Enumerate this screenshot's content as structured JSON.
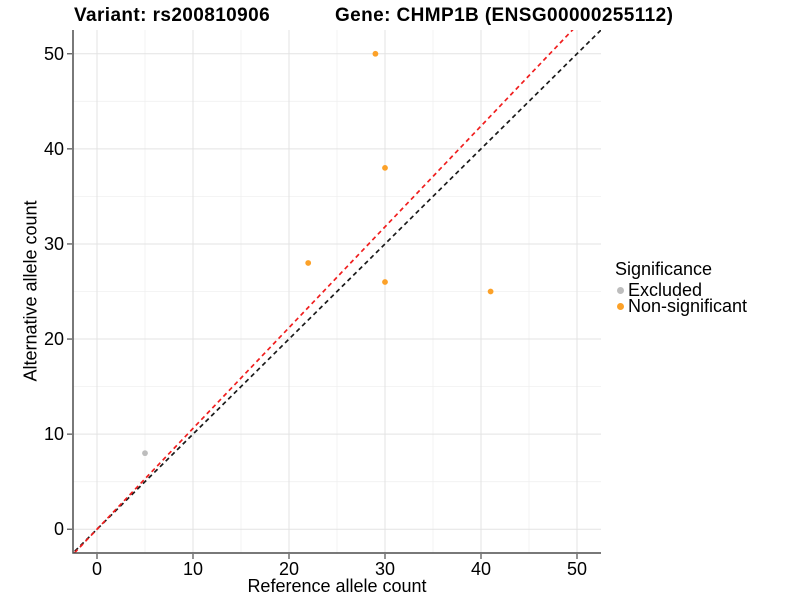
{
  "chart_data": {
    "type": "scatter",
    "title_left": "Variant: rs200810906",
    "title_right": "Gene: CHMP1B (ENSG00000255112)",
    "xlabel": "Reference allele count",
    "ylabel": "Alternative allele count",
    "xlim": [
      -2.5,
      52.5
    ],
    "ylim": [
      -2.5,
      52.5
    ],
    "x_ticks": [
      0,
      10,
      20,
      30,
      40,
      50
    ],
    "y_ticks": [
      0,
      10,
      20,
      30,
      40,
      50
    ],
    "x_minor_ticks": [
      5,
      15,
      25,
      35,
      45
    ],
    "y_minor_ticks": [
      5,
      15,
      25,
      35,
      45
    ],
    "grid": "major and minor gridlines, light grey on white",
    "series": [
      {
        "name": "Excluded",
        "color": "#BDBDBD",
        "points": [
          {
            "x": 5,
            "y": 8
          }
        ]
      },
      {
        "name": "Non-significant",
        "color": "#FCA128",
        "points": [
          {
            "x": 22,
            "y": 28
          },
          {
            "x": 29,
            "y": 50
          },
          {
            "x": 30,
            "y": 26
          },
          {
            "x": 30,
            "y": 38
          },
          {
            "x": 41,
            "y": 25
          }
        ]
      }
    ],
    "reference_lines": [
      {
        "name": "identity-line",
        "slope": 1.0,
        "intercept": 0,
        "color": "#1A1A1A",
        "style": "dashed"
      },
      {
        "name": "allelic-ratio-line",
        "slope": 1.06,
        "intercept": 0,
        "color": "#F01E1E",
        "style": "dashed"
      }
    ],
    "legend": {
      "title": "Significance",
      "position": "right",
      "items": [
        {
          "label": "Excluded",
          "color": "#BDBDBD"
        },
        {
          "label": "Non-significant",
          "color": "#FCA128"
        }
      ]
    },
    "colors": {
      "background": "#FFFFFF",
      "grid_major": "#E3E3E3",
      "grid_minor": "#F0F0F0",
      "axis": "#4D4D4D",
      "text": "#000000"
    }
  }
}
